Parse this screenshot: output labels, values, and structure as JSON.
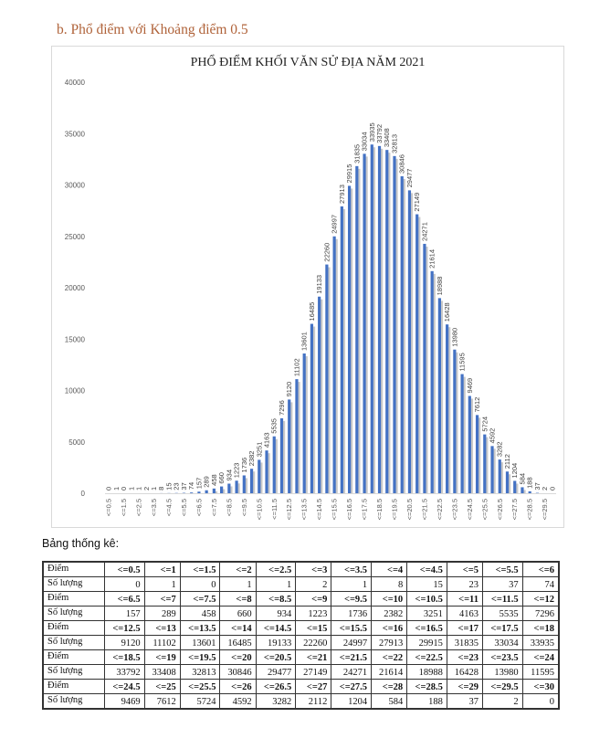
{
  "heading": "b.  Phổ điểm với Khoảng điểm 0.5",
  "table_label": "Bảng thống kê:",
  "colors": {
    "bar": "#4472c4",
    "shadow": "#c9c9c9",
    "heading": "#b0633a"
  },
  "chart_data": {
    "type": "bar",
    "title": "PHỔ ĐIỂM KHỐI VĂN SỬ ĐỊA NĂM 2021",
    "xlabel": "",
    "ylabel": "",
    "ylim": [
      0,
      40000
    ],
    "yticks": [
      "0",
      "5000",
      "10000",
      "15000",
      "20000",
      "25000",
      "30000",
      "35000",
      "40000"
    ],
    "grid": false,
    "categories": [
      "<=0.5",
      "<=1",
      "<=1.5",
      "<=2",
      "<=2.5",
      "<=3",
      "<=3.5",
      "<=4",
      "<=4.5",
      "<=5",
      "<=5.5",
      "<=6",
      "<=6.5",
      "<=7",
      "<=7.5",
      "<=8",
      "<=8.5",
      "<=9",
      "<=9.5",
      "<=10",
      "<=10.5",
      "<=11",
      "<=11.5",
      "<=12",
      "<=12.5",
      "<=13",
      "<=13.5",
      "<=14",
      "<=14.5",
      "<=15",
      "<=15.5",
      "<=16",
      "<=16.5",
      "<=17",
      "<=17.5",
      "<=18",
      "<=18.5",
      "<=19",
      "<=19.5",
      "<=20",
      "<=20.5",
      "<=21",
      "<=21.5",
      "<=22",
      "<=22.5",
      "<=23",
      "<=23.5",
      "<=24",
      "<=24.5",
      "<=25",
      "<=25.5",
      "<=26",
      "<=26.5",
      "<=27",
      "<=27.5",
      "<=28",
      "<=28.5",
      "<=29",
      "<=29.5",
      "<=30"
    ],
    "x_tick_labels_shown": [
      "<=0.5",
      "<=1.5",
      "<=2.5",
      "<=3.5",
      "<=4.5",
      "<=5.5",
      "<=6.5",
      "<=7.5",
      "<=8.5",
      "<=9.5",
      "<=10.5",
      "<=11.5",
      "<=12.5",
      "<=13.5",
      "<=14.5",
      "<=15.5",
      "<=16.5",
      "<=17.5",
      "<=18.5",
      "<=19.5",
      "<=20.5",
      "<=21.5",
      "<=22.5",
      "<=23.5",
      "<=24.5",
      "<=25.5",
      "<=26.5",
      "<=27.5",
      "<=28.5",
      "<=29.5"
    ],
    "values": [
      0,
      1,
      0,
      1,
      1,
      2,
      1,
      8,
      15,
      23,
      37,
      74,
      157,
      289,
      458,
      660,
      934,
      1223,
      1736,
      2382,
      3251,
      4163,
      5535,
      7296,
      9120,
      11102,
      13601,
      16485,
      19133,
      22260,
      24997,
      27913,
      29915,
      31835,
      33034,
      33935,
      33792,
      33408,
      32813,
      30846,
      29477,
      27149,
      24271,
      21614,
      18988,
      16428,
      13980,
      11595,
      9469,
      7612,
      5724,
      4592,
      3282,
      2112,
      1204,
      584,
      188,
      37,
      2,
      0
    ]
  },
  "table": {
    "row_labels": {
      "diem": "Điểm",
      "so_luong": "Số lượng"
    },
    "blocks": [
      {
        "diem": [
          "<=0.5",
          "<=1",
          "<=1.5",
          "<=2",
          "<=2.5",
          "<=3",
          "<=3.5",
          "<=4",
          "<=4.5",
          "<=5",
          "<=5.5",
          "<=6"
        ],
        "so_luong": [
          "0",
          "1",
          "0",
          "1",
          "1",
          "2",
          "1",
          "8",
          "15",
          "23",
          "37",
          "74"
        ]
      },
      {
        "diem": [
          "<=6.5",
          "<=7",
          "<=7.5",
          "<=8",
          "<=8.5",
          "<=9",
          "<=9.5",
          "<=10",
          "<=10.5",
          "<=11",
          "<=11.5",
          "<=12"
        ],
        "so_luong": [
          "157",
          "289",
          "458",
          "660",
          "934",
          "1223",
          "1736",
          "2382",
          "3251",
          "4163",
          "5535",
          "7296"
        ]
      },
      {
        "diem": [
          "<=12.5",
          "<=13",
          "<=13.5",
          "<=14",
          "<=14.5",
          "<=15",
          "<=15.5",
          "<=16",
          "<=16.5",
          "<=17",
          "<=17.5",
          "<=18"
        ],
        "so_luong": [
          "9120",
          "11102",
          "13601",
          "16485",
          "19133",
          "22260",
          "24997",
          "27913",
          "29915",
          "31835",
          "33034",
          "33935"
        ]
      },
      {
        "diem": [
          "<=18.5",
          "<=19",
          "<=19.5",
          "<=20",
          "<=20.5",
          "<=21",
          "<=21.5",
          "<=22",
          "<=22.5",
          "<=23",
          "<=23.5",
          "<=24"
        ],
        "so_luong": [
          "33792",
          "33408",
          "32813",
          "30846",
          "29477",
          "27149",
          "24271",
          "21614",
          "18988",
          "16428",
          "13980",
          "11595"
        ]
      },
      {
        "diem": [
          "<=24.5",
          "<=25",
          "<=25.5",
          "<=26",
          "<=26.5",
          "<=27",
          "<=27.5",
          "<=28",
          "<=28.5",
          "<=29",
          "<=29.5",
          "<=30"
        ],
        "so_luong": [
          "9469",
          "7612",
          "5724",
          "4592",
          "3282",
          "2112",
          "1204",
          "584",
          "188",
          "37",
          "2",
          "0"
        ]
      }
    ]
  }
}
